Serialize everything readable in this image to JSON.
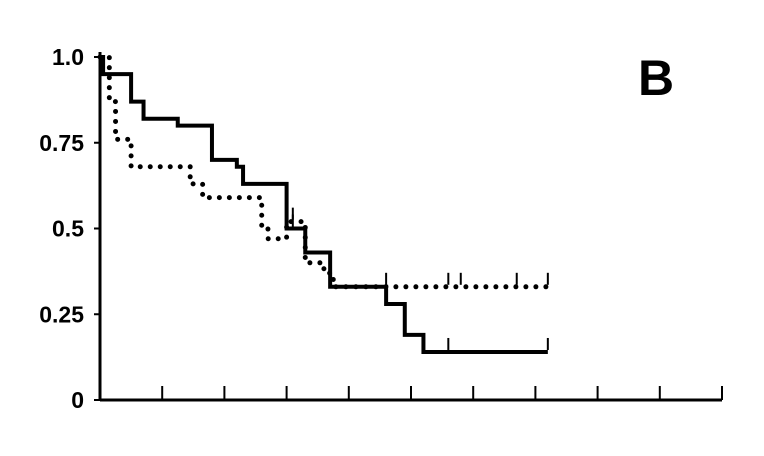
{
  "chart_data": {
    "type": "line",
    "title": "",
    "panel_label": "B",
    "xlabel": "",
    "ylabel": "",
    "xlim": [
      0,
      10
    ],
    "ylim": [
      0,
      1
    ],
    "grid": false,
    "legend": "none",
    "x_ticks": [
      0,
      1,
      2,
      3,
      4,
      5,
      6,
      7,
      8,
      9,
      10
    ],
    "y_ticks": [
      {
        "value": 0,
        "label": "0"
      },
      {
        "value": 0.25,
        "label": "0.25"
      },
      {
        "value": 0.5,
        "label": "0.5"
      },
      {
        "value": 0.75,
        "label": "0.75"
      },
      {
        "value": 1.0,
        "label": "1.0"
      }
    ],
    "series": [
      {
        "style": "solid",
        "color": "#000000",
        "steps": [
          [
            0.0,
            1.0
          ],
          [
            0.05,
            0.95
          ],
          [
            0.5,
            0.87
          ],
          [
            0.7,
            0.82
          ],
          [
            1.25,
            0.8
          ],
          [
            1.8,
            0.7
          ],
          [
            2.2,
            0.68
          ],
          [
            2.3,
            0.63
          ],
          [
            3.0,
            0.5
          ],
          [
            3.3,
            0.43
          ],
          [
            3.7,
            0.33
          ],
          [
            4.6,
            0.28
          ],
          [
            4.9,
            0.19
          ],
          [
            5.2,
            0.14
          ],
          [
            7.2,
            0.14
          ]
        ],
        "censor_x": [
          3.1,
          5.6,
          7.2
        ]
      },
      {
        "style": "dotted",
        "color": "#000000",
        "steps": [
          [
            0.0,
            1.0
          ],
          [
            0.15,
            0.87
          ],
          [
            0.25,
            0.76
          ],
          [
            0.5,
            0.68
          ],
          [
            1.45,
            0.63
          ],
          [
            1.65,
            0.59
          ],
          [
            2.6,
            0.5
          ],
          [
            2.7,
            0.47
          ],
          [
            3.0,
            0.52
          ],
          [
            3.3,
            0.4
          ],
          [
            3.6,
            0.37
          ],
          [
            3.75,
            0.33
          ],
          [
            7.3,
            0.33
          ]
        ],
        "censor_x": [
          3.1,
          4.6,
          5.6,
          5.8,
          6.7,
          7.2
        ]
      }
    ]
  }
}
